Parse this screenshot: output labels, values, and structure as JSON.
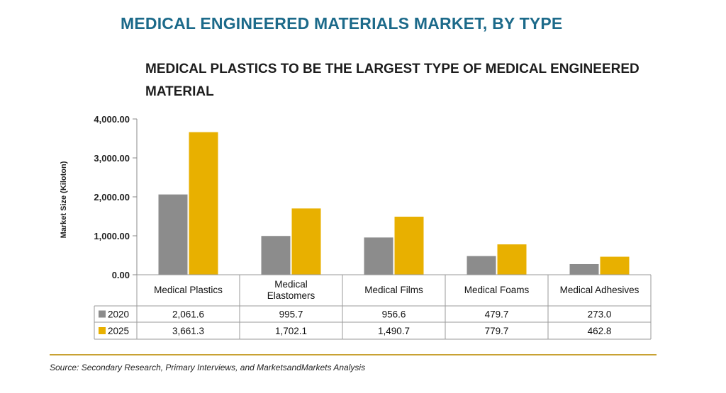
{
  "header": {
    "banner": "MEDICAL ENGINEERED MATERIALS MARKET, BY TYPE"
  },
  "chart_data": {
    "type": "bar",
    "title": "MEDICAL PLASTICS TO BE THE LARGEST TYPE OF MEDICAL ENGINEERED MATERIAL",
    "xlabel": "",
    "ylabel": "Market Size (Kiloton)",
    "ylim": [
      0,
      4000
    ],
    "yticks": [
      "4,000.00",
      "3,000.00",
      "2,000.00",
      "1,000.00",
      "0.00"
    ],
    "ytick_values": [
      4000,
      3000,
      2000,
      1000,
      0
    ],
    "categories": [
      "Medical Plastics",
      "Medical\nElastomers",
      "Medical Films",
      "Medical Foams",
      "Medical Adhesives"
    ],
    "series": [
      {
        "name": "2020",
        "color": "#8c8c8c",
        "values": [
          2061.6,
          995.7,
          956.6,
          479.7,
          273.0
        ],
        "labels": [
          "2,061.6",
          "995.7",
          "956.6",
          "479.7",
          "273.0"
        ]
      },
      {
        "name": "2025",
        "color": "#e8b000",
        "values": [
          3661.3,
          1702.1,
          1490.7,
          779.7,
          462.8
        ],
        "labels": [
          "3,661.3",
          "1,702.1",
          "1,490.7",
          "779.7",
          "462.8"
        ]
      }
    ],
    "grid": false,
    "legend": "data-table-left"
  },
  "footer": {
    "source": "Source: Secondary Research, Primary Interviews, and MarketsandMarkets Analysis"
  }
}
